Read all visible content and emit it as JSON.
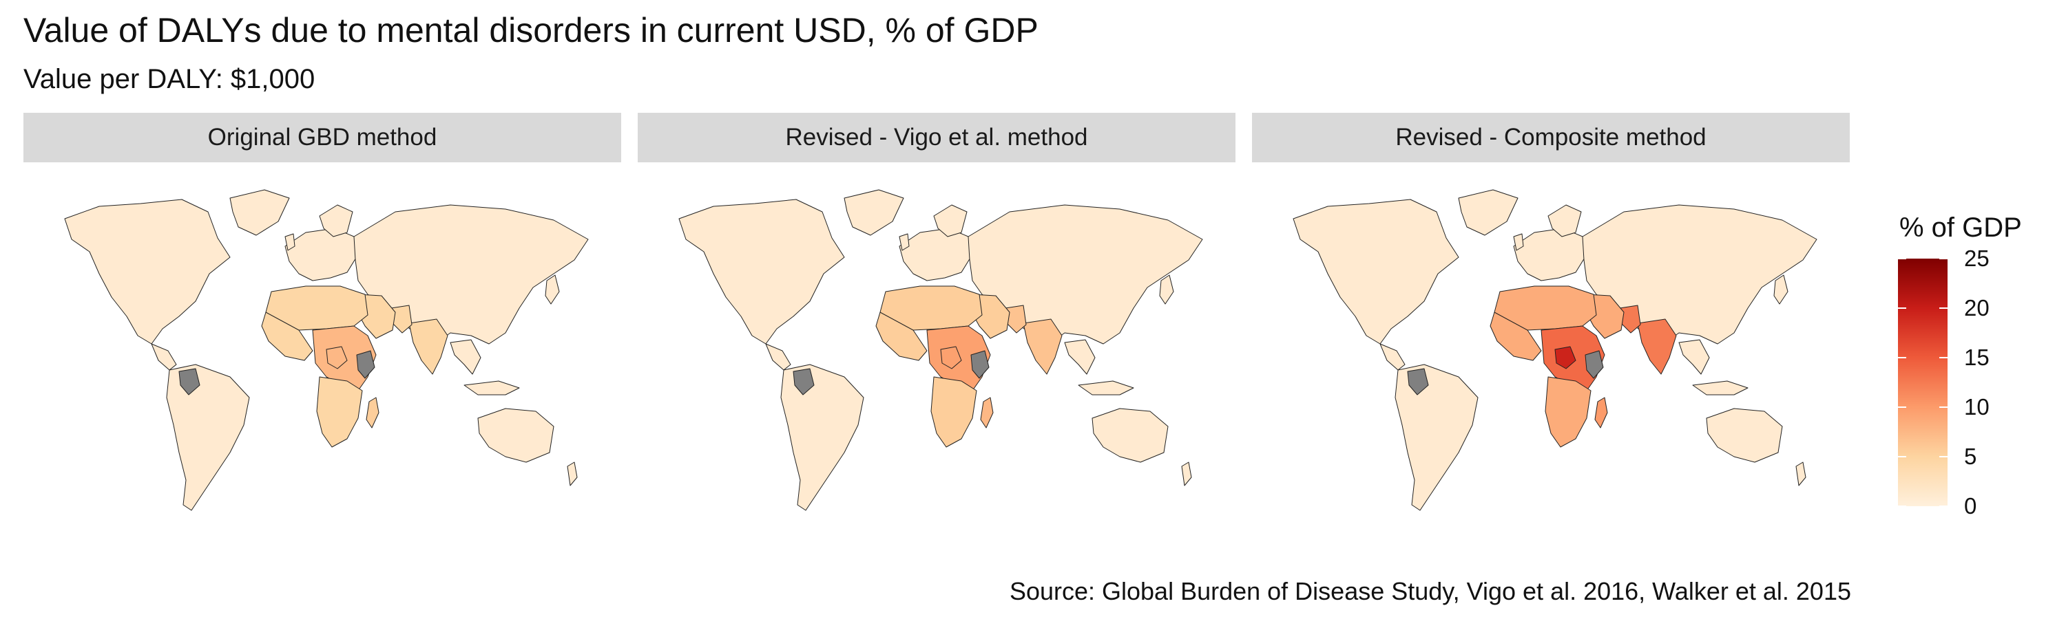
{
  "title": "Value of DALYs due to mental disorders in current USD, % of GDP",
  "subtitle": "Value per DALY: $1,000",
  "caption": "Source: Global Burden of Disease Study, Vigo et al. 2016, Walker et al. 2015",
  "panels": [
    {
      "label": "Original GBD method",
      "intensity": {
        "africa": 0.18,
        "east_africa": 0.3,
        "south_asia": 0.18,
        "madagascar": 0.22
      }
    },
    {
      "label": "Revised - Vigo et al. method",
      "intensity": {
        "africa": 0.22,
        "east_africa": 0.38,
        "south_asia": 0.26,
        "madagascar": 0.3
      }
    },
    {
      "label": "Revised - Composite method",
      "intensity": {
        "africa": 0.34,
        "east_africa": 0.55,
        "south_asia": 0.5,
        "madagascar": 0.4,
        "central_africa_hotspot": 0.78
      }
    }
  ],
  "legend": {
    "title": "% of GDP",
    "min": 0,
    "max": 25,
    "ticks": [
      "0",
      "5",
      "10",
      "15",
      "20",
      "25"
    ],
    "colors": [
      "#fff0dc",
      "#fdd4a0",
      "#fc9b6a",
      "#ee5a3a",
      "#c81d18",
      "#7f0000"
    ],
    "no_data_color": "#808080"
  }
}
